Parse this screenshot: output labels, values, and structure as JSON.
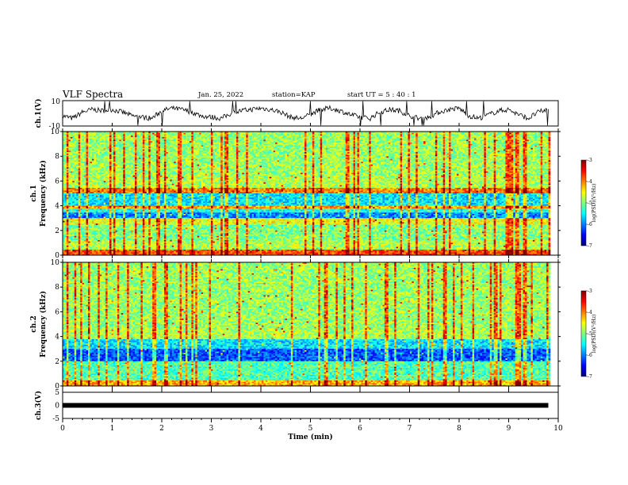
{
  "header": {
    "title": "VLF Spectra",
    "date": "Jan. 25, 2022",
    "station": "station=KAP",
    "start": "start UT =  5 : 40 : 1"
  },
  "chart_data": [
    {
      "type": "line",
      "title": "",
      "ylabel": "ch.1(V)",
      "ylim": [
        -10,
        10
      ],
      "yticks": [
        "10",
        "-10"
      ],
      "note": "noisy waveform, roughly oscillating around 0 between about -5 and +5 V",
      "x": [
        0,
        0.2,
        0.4,
        0.6,
        0.8,
        1.0,
        1.2,
        1.4,
        1.6,
        1.8,
        2.0,
        2.2,
        2.4,
        2.6,
        2.8,
        3.0,
        3.2,
        3.4,
        3.6,
        3.8,
        4.0,
        4.2,
        4.4,
        4.6,
        4.8,
        5.0,
        5.2,
        5.4,
        5.6,
        5.8,
        6.0,
        6.2,
        6.4,
        6.6,
        6.8,
        7.0,
        7.2,
        7.4,
        7.6,
        7.8,
        8.0,
        8.2,
        8.4,
        8.6,
        8.8,
        9.0,
        9.2,
        9.4,
        9.6,
        9.8
      ],
      "y": [
        -2,
        -4,
        1,
        3,
        2,
        3,
        1,
        -2,
        -3,
        -4,
        2,
        4,
        3,
        1,
        -2,
        -3,
        -4,
        0,
        2,
        3,
        4,
        3,
        1,
        -3,
        -4,
        -1,
        3,
        4,
        2,
        -1,
        -3,
        -4,
        1,
        3,
        2,
        -2,
        -4,
        -3,
        1,
        3,
        4,
        -2,
        -4,
        -1,
        2,
        3,
        -1,
        -4,
        1,
        3
      ]
    },
    {
      "type": "heatmap",
      "title": "",
      "ylabel": "ch.1\nFrequency (kHz)",
      "xlim": [
        0,
        10
      ],
      "ylim": [
        0,
        10
      ],
      "yticks": [
        "0",
        "2",
        "4",
        "6",
        "8",
        "10"
      ],
      "colorbar": {
        "label": "log(PSD)(V²/Hz)",
        "range": [
          -7,
          -3
        ],
        "ticks": [
          "-3",
          "-4",
          "-5",
          "-6",
          "-7"
        ]
      },
      "bands_kHz_level": [
        [
          0,
          0.4,
          -3.8
        ],
        [
          0.4,
          1.2,
          -4.8
        ],
        [
          1.2,
          2.4,
          -5.0
        ],
        [
          2.4,
          3.0,
          -4.6
        ],
        [
          3.0,
          3.4,
          -6.0
        ],
        [
          3.4,
          3.8,
          -5.4
        ],
        [
          3.8,
          4.0,
          -4.2
        ],
        [
          4.0,
          5.0,
          -5.6
        ],
        [
          5.0,
          5.4,
          -4.0
        ],
        [
          5.4,
          6.5,
          -4.8
        ],
        [
          6.5,
          10,
          -4.9
        ]
      ]
    },
    {
      "type": "heatmap",
      "title": "",
      "ylabel": "ch.2\nFrequency (kHz)",
      "xlim": [
        0,
        10
      ],
      "ylim": [
        0,
        10
      ],
      "yticks": [
        "0",
        "2",
        "4",
        "6",
        "8",
        "10"
      ],
      "colorbar": {
        "label": "log(PSD)(V²/Hz)",
        "range": [
          -7,
          -3
        ],
        "ticks": [
          "-3",
          "-4",
          "-5",
          "-6",
          "-7"
        ]
      },
      "bands_kHz_level": [
        [
          0,
          0.4,
          -4.2
        ],
        [
          0.4,
          2.0,
          -5.2
        ],
        [
          2.0,
          3.0,
          -6.2
        ],
        [
          3.0,
          3.8,
          -5.6
        ],
        [
          3.8,
          4.6,
          -4.8
        ],
        [
          4.6,
          10,
          -4.9
        ]
      ]
    },
    {
      "type": "line",
      "title": "",
      "ylabel": "ch.3(V)",
      "xlabel": "Time (min)",
      "xlim": [
        0,
        10
      ],
      "ylim": [
        -5,
        5
      ],
      "yticks": [
        "5",
        "0",
        "-5"
      ],
      "xticks": [
        "0",
        "1",
        "2",
        "3",
        "4",
        "5",
        "6",
        "7",
        "8",
        "9",
        "10"
      ],
      "x": [
        0,
        9.8
      ],
      "y": [
        0,
        0
      ]
    }
  ]
}
